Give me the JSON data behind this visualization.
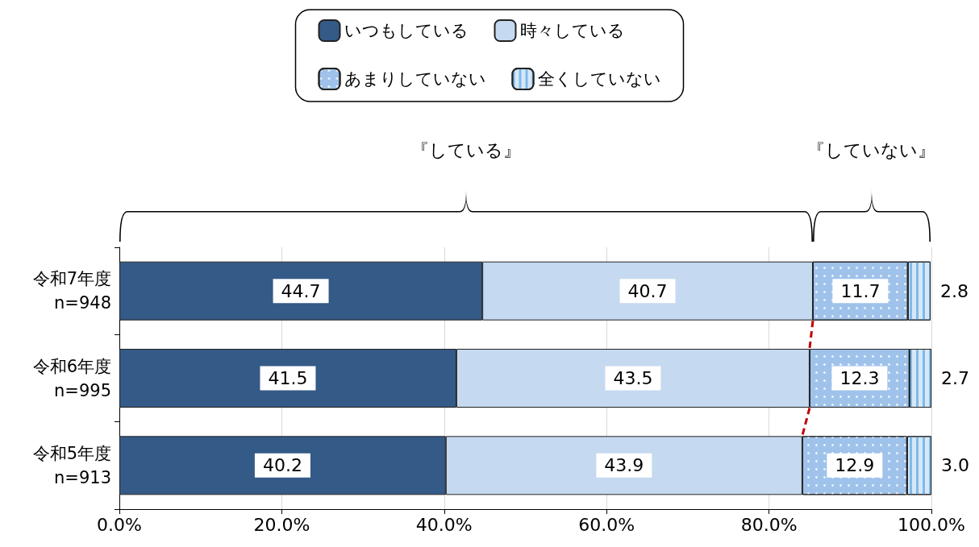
{
  "chart_data": {
    "type": "bar",
    "orientation": "horizontal",
    "stacked": true,
    "categories": [
      "令和7年度\nn=948",
      "令和6年度\nn=995",
      "令和5年度\nn=913"
    ],
    "series": [
      {
        "name": "いつもしている",
        "color": "#345a87",
        "values": [
          44.7,
          41.5,
          40.2
        ],
        "value_labels": [
          "44.7",
          "41.5",
          "40.2"
        ]
      },
      {
        "name": "時々している",
        "color": "#c5d9f0",
        "values": [
          40.7,
          43.5,
          43.9
        ],
        "value_labels": [
          "40.7",
          "43.5",
          "43.9"
        ]
      },
      {
        "name": "あまりしていない",
        "color": "#9fc2ea",
        "values": [
          11.7,
          12.3,
          12.9
        ],
        "value_labels": [
          "11.7",
          "12.3",
          "12.9"
        ]
      },
      {
        "name": "全くしていない",
        "color": "#d6e8f8",
        "values": [
          2.8,
          2.7,
          3.0
        ],
        "value_labels": [
          "2.8",
          "2.7",
          "3.0"
        ]
      }
    ],
    "xlim": [
      0,
      100
    ],
    "xticks": [
      {
        "value": 0,
        "label": "0.0%"
      },
      {
        "value": 20,
        "label": "20.0%"
      },
      {
        "value": 40,
        "label": "40.0%"
      },
      {
        "value": 60,
        "label": "60.0%"
      },
      {
        "value": 80,
        "label": "80.0%"
      },
      {
        "value": 100,
        "label": "100.0%"
      }
    ],
    "grid": "x",
    "legend": "top",
    "annotations": [
      "『している』",
      "『していない』"
    ]
  }
}
